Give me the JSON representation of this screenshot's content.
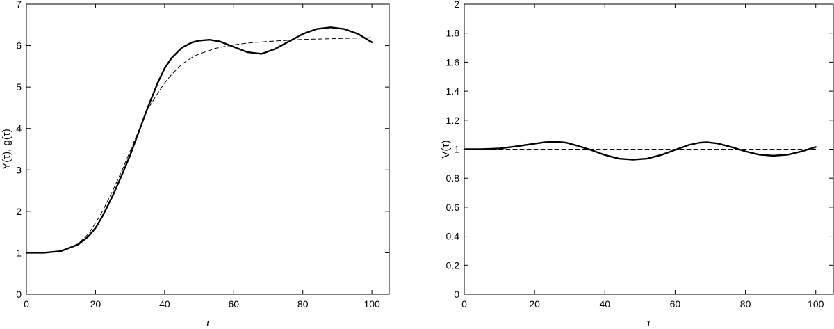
{
  "chart_data": [
    {
      "type": "line",
      "xlabel": "τ",
      "ylabel": "Y(τ),  g(τ)",
      "xlim": [
        0,
        105
      ],
      "ylim": [
        0,
        7
      ],
      "xticks": [
        "0",
        "20",
        "40",
        "60",
        "80",
        "100"
      ],
      "yticks": [
        "0",
        "1",
        "2",
        "3",
        "4",
        "5",
        "6",
        "7"
      ],
      "grid": false,
      "series": [
        {
          "style": "solid",
          "x": [
            0,
            5,
            10,
            15,
            18,
            20,
            22,
            25,
            28,
            30,
            32,
            35,
            38,
            40,
            42,
            45,
            48,
            50,
            53,
            56,
            60,
            64,
            68,
            72,
            76,
            80,
            84,
            88,
            92,
            96,
            100
          ],
          "y": [
            1.0,
            1.0,
            1.04,
            1.2,
            1.4,
            1.6,
            1.88,
            2.38,
            2.95,
            3.35,
            3.8,
            4.48,
            5.1,
            5.45,
            5.7,
            5.95,
            6.08,
            6.12,
            6.14,
            6.1,
            5.97,
            5.84,
            5.8,
            5.92,
            6.1,
            6.28,
            6.4,
            6.44,
            6.4,
            6.28,
            6.08
          ]
        },
        {
          "style": "dashed",
          "x": [
            0,
            5,
            10,
            15,
            18,
            20,
            22,
            25,
            28,
            30,
            32,
            35,
            38,
            40,
            42,
            45,
            48,
            50,
            55,
            60,
            65,
            70,
            80,
            90,
            100
          ],
          "y": [
            1.0,
            1.0,
            1.03,
            1.22,
            1.46,
            1.72,
            2.0,
            2.5,
            3.05,
            3.45,
            3.85,
            4.45,
            4.85,
            5.1,
            5.3,
            5.55,
            5.72,
            5.8,
            5.94,
            6.02,
            6.07,
            6.1,
            6.15,
            6.17,
            6.19
          ]
        }
      ]
    },
    {
      "type": "line",
      "xlabel": "τ",
      "ylabel": "V(τ)",
      "xlim": [
        0,
        105
      ],
      "ylim": [
        0,
        2
      ],
      "xticks": [
        "0",
        "20",
        "40",
        "60",
        "80",
        "100"
      ],
      "yticks": [
        "0",
        "0.2",
        "0.4",
        "0.6",
        "0.8",
        "1",
        "1.2",
        "1.4",
        "1.6",
        "1.8",
        "2"
      ],
      "grid": false,
      "series": [
        {
          "style": "solid",
          "x": [
            0,
            5,
            10,
            15,
            20,
            23,
            26,
            29,
            32,
            36,
            40,
            44,
            48,
            52,
            56,
            60,
            64,
            67,
            69,
            72,
            76,
            80,
            84,
            88,
            92,
            96,
            100
          ],
          "y": [
            1.0,
            1.0,
            1.005,
            1.02,
            1.038,
            1.048,
            1.052,
            1.045,
            1.025,
            0.995,
            0.96,
            0.935,
            0.928,
            0.935,
            0.96,
            0.995,
            1.03,
            1.045,
            1.048,
            1.04,
            1.015,
            0.985,
            0.962,
            0.955,
            0.962,
            0.985,
            1.015
          ]
        },
        {
          "style": "dashed",
          "x": [
            0,
            100
          ],
          "y": [
            1.0,
            1.0
          ]
        }
      ]
    }
  ]
}
